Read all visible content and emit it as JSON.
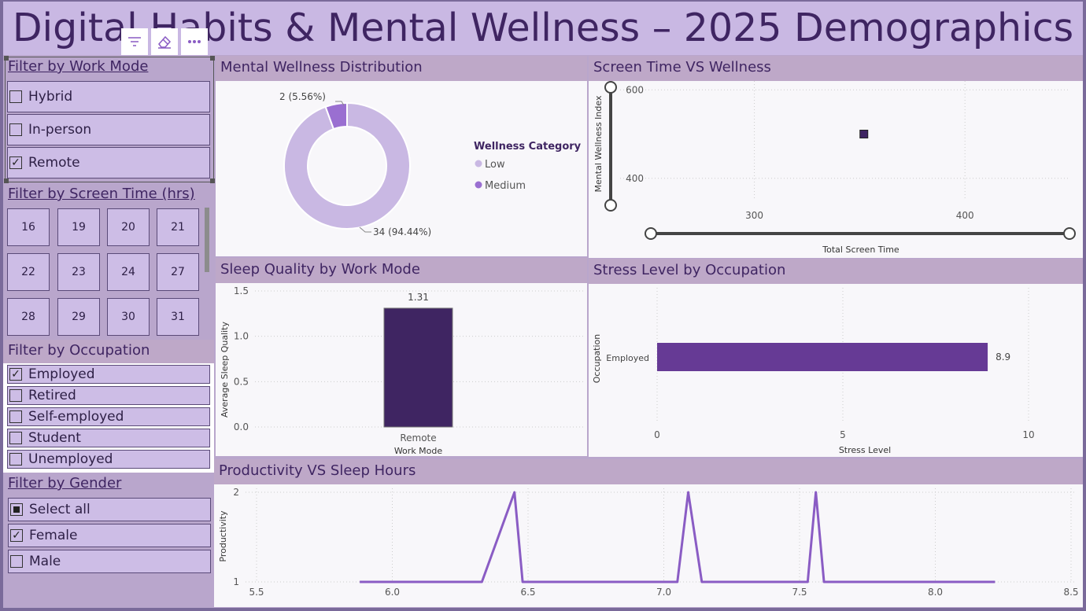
{
  "header": {
    "title": "Digital Habits & Mental Wellness – 2025 Demographics"
  },
  "toolbar": {
    "icons": [
      "filter-icon",
      "eraser-icon",
      "more-options-icon"
    ]
  },
  "colors": {
    "accent": "#3f2562",
    "slicer": "#cdbde6",
    "panel_head": "#bea8c8",
    "bar_dark": "#3f2562",
    "bar_mid": "#663a95",
    "line": "#8a5cc4",
    "donut_low": "#c9b8e3",
    "donut_medium": "#9a6fd1"
  },
  "work_mode_filter": {
    "title": "Filter by Work Mode",
    "options": [
      {
        "label": "Hybrid",
        "checked": false
      },
      {
        "label": "In-person",
        "checked": false
      },
      {
        "label": "Remote",
        "checked": true
      }
    ]
  },
  "screen_time_filter": {
    "title": "Filter by Screen Time (hrs)",
    "tiles": [
      "16",
      "19",
      "20",
      "21",
      "22",
      "23",
      "24",
      "27",
      "28",
      "29",
      "30",
      "31"
    ]
  },
  "occupation_filter": {
    "title": "Filter by Occupation",
    "options": [
      {
        "label": "Employed",
        "checked": true
      },
      {
        "label": "Retired",
        "checked": false
      },
      {
        "label": "Self-employed",
        "checked": false
      },
      {
        "label": "Student",
        "checked": false
      },
      {
        "label": "Unemployed",
        "checked": false
      }
    ]
  },
  "gender_filter": {
    "title": "Filter by Gender",
    "options": [
      {
        "label": "Select all",
        "state": "partial"
      },
      {
        "label": "Female",
        "state": "checked"
      },
      {
        "label": "Male",
        "state": "unchecked"
      }
    ]
  },
  "panels": {
    "wellness_distribution": "Mental Wellness Distribution",
    "screen_vs_wellness": "Screen Time VS Wellness",
    "sleep_by_work_mode": "Sleep Quality by Work Mode",
    "stress_by_occupation": "Stress Level by Occupation",
    "productivity_vs_sleep": "Productivity VS Sleep Hours"
  },
  "chart_data": [
    {
      "type": "pie",
      "variant": "donut",
      "legend_title": "Wellness Category",
      "legend_placement": "right",
      "slices": [
        {
          "name": "Low",
          "value": 34,
          "label": "34 (94.44%)"
        },
        {
          "name": "Medium",
          "value": 2,
          "label": "2 (5.56%)"
        }
      ]
    },
    {
      "type": "scatter",
      "xlabel": "Total Screen Time",
      "ylabel": "Mental Wellness Index",
      "xlim": [
        240,
        450
      ],
      "ylim": [
        300,
        620
      ],
      "x_ticks": [
        "300",
        "400"
      ],
      "y_ticks": [
        "400",
        "600"
      ],
      "points": [
        {
          "x": 352,
          "y": 500
        }
      ]
    },
    {
      "type": "bar",
      "categories": [
        "Remote"
      ],
      "values": [
        1.31
      ],
      "data_labels": [
        "1.31"
      ],
      "xlabel": "Work Mode",
      "ylabel": "Average Sleep Quality",
      "ylim": [
        0,
        1.5
      ],
      "y_ticks": [
        "0.0",
        "0.5",
        "1.0",
        "1.5"
      ]
    },
    {
      "type": "bar",
      "orientation": "horizontal",
      "categories": [
        "Employed"
      ],
      "values": [
        8.9
      ],
      "data_labels": [
        "8.9"
      ],
      "xlabel": "Stress Level",
      "ylabel": "Occupation",
      "xlim": [
        0,
        10
      ],
      "x_ticks": [
        "0",
        "5",
        "10"
      ]
    },
    {
      "type": "line",
      "ylabel": "Productivity",
      "xlim": [
        5.5,
        8.5
      ],
      "ylim": [
        1,
        2
      ],
      "x_ticks": [
        "5.5",
        "6.0",
        "6.5",
        "7.0",
        "7.5",
        "8.0",
        "8.5"
      ],
      "y_ticks": [
        "1",
        "2"
      ],
      "points": [
        {
          "x": 5.88,
          "y": 1
        },
        {
          "x": 6.33,
          "y": 1
        },
        {
          "x": 6.45,
          "y": 2
        },
        {
          "x": 6.48,
          "y": 1
        },
        {
          "x": 7.05,
          "y": 1
        },
        {
          "x": 7.09,
          "y": 2
        },
        {
          "x": 7.14,
          "y": 1
        },
        {
          "x": 7.53,
          "y": 1
        },
        {
          "x": 7.56,
          "y": 2
        },
        {
          "x": 7.59,
          "y": 1
        },
        {
          "x": 8.22,
          "y": 1
        }
      ]
    }
  ]
}
